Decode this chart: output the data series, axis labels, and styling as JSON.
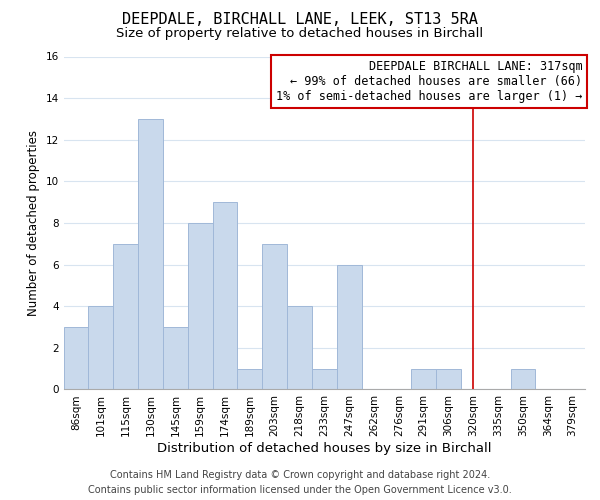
{
  "title": "DEEPDALE, BIRCHALL LANE, LEEK, ST13 5RA",
  "subtitle": "Size of property relative to detached houses in Birchall",
  "xlabel": "Distribution of detached houses by size in Birchall",
  "ylabel": "Number of detached properties",
  "bin_labels": [
    "86sqm",
    "101sqm",
    "115sqm",
    "130sqm",
    "145sqm",
    "159sqm",
    "174sqm",
    "189sqm",
    "203sqm",
    "218sqm",
    "233sqm",
    "247sqm",
    "262sqm",
    "276sqm",
    "291sqm",
    "306sqm",
    "320sqm",
    "335sqm",
    "350sqm",
    "364sqm",
    "379sqm"
  ],
  "bar_values": [
    3,
    4,
    7,
    13,
    3,
    8,
    9,
    1,
    7,
    4,
    1,
    6,
    0,
    0,
    1,
    1,
    0,
    0,
    1,
    0,
    0
  ],
  "bar_color": "#c9d9ec",
  "bar_edge_color": "#a0b8d8",
  "ylim": [
    0,
    16
  ],
  "yticks": [
    0,
    2,
    4,
    6,
    8,
    10,
    12,
    14,
    16
  ],
  "vline_x_index": 16,
  "vline_color": "#cc0000",
  "annotation_line1": "DEEPDALE BIRCHALL LANE: 317sqm",
  "annotation_line2": "← 99% of detached houses are smaller (66)",
  "annotation_line3": "1% of semi-detached houses are larger (1) →",
  "annotation_box_color": "#ffffff",
  "annotation_box_edge_color": "#cc0000",
  "footer_line1": "Contains HM Land Registry data © Crown copyright and database right 2024.",
  "footer_line2": "Contains public sector information licensed under the Open Government Licence v3.0.",
  "background_color": "#ffffff",
  "grid_color": "#d8e4f0",
  "title_fontsize": 11,
  "subtitle_fontsize": 9.5,
  "xlabel_fontsize": 9.5,
  "ylabel_fontsize": 8.5,
  "tick_fontsize": 7.5,
  "annotation_fontsize": 8.5,
  "footer_fontsize": 7
}
